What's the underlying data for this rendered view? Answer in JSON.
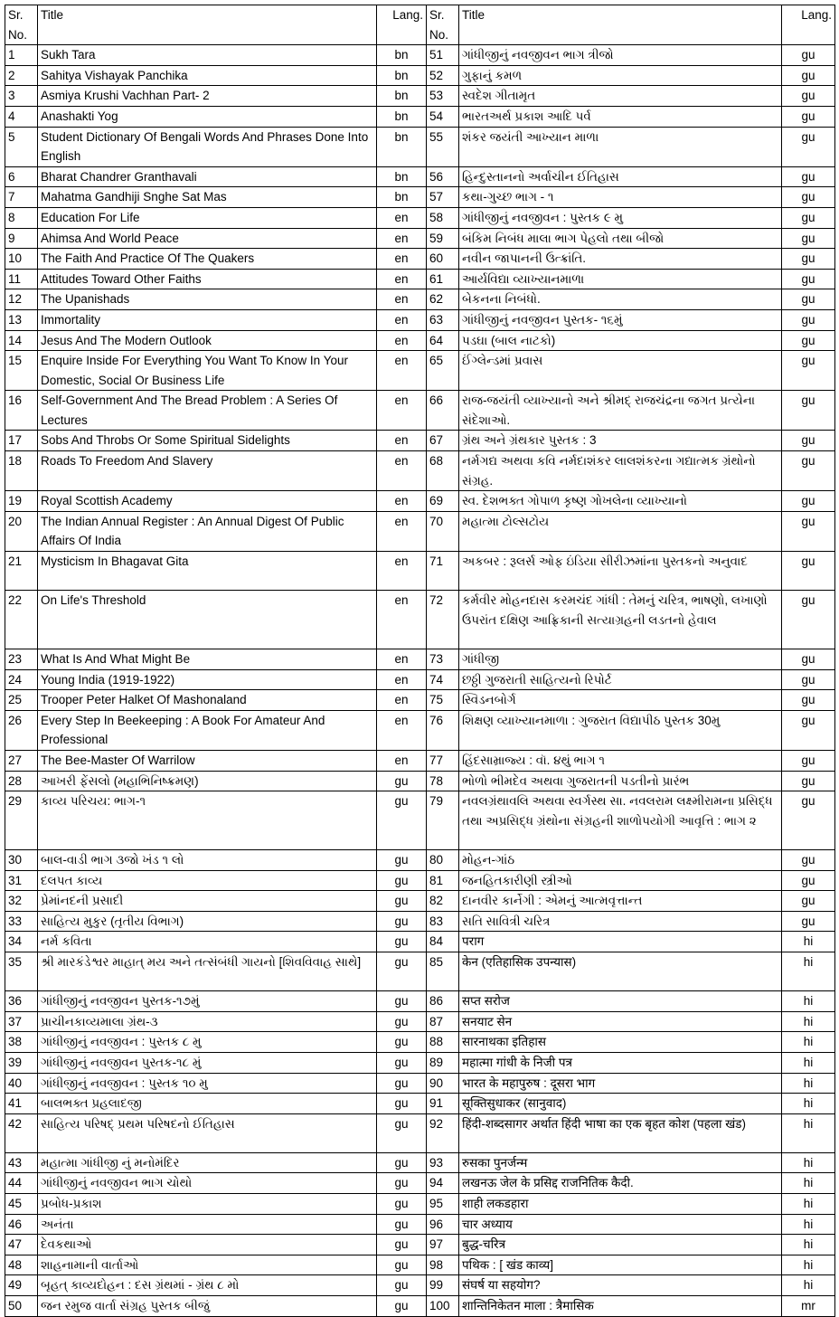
{
  "header": {
    "sr": "Sr. No.",
    "title": "Title",
    "lang": "Lang."
  },
  "rows": [
    {
      "l": {
        "sr": "1",
        "title": "Sukh Tara",
        "lang": "bn"
      },
      "r": {
        "sr": "51",
        "title": "ગાંધીજીનું નવજીવન ભાગ ત્રીજો",
        "lang": "gu"
      }
    },
    {
      "l": {
        "sr": "2",
        "title": "Sahitya Vishayak Panchika",
        "lang": "bn"
      },
      "r": {
        "sr": "52",
        "title": "ગુફાનું કમળ",
        "lang": "gu"
      }
    },
    {
      "l": {
        "sr": "3",
        "title": "Asmiya Krushi Vachhan Part- 2",
        "lang": "bn"
      },
      "r": {
        "sr": "53",
        "title": "સ્વદેશ ગીતામૃત",
        "lang": "gu"
      }
    },
    {
      "l": {
        "sr": "4",
        "title": "Anashakti Yog",
        "lang": "bn"
      },
      "r": {
        "sr": "54",
        "title": "ભારતઅર્થ પ્રકાશ આદિ પર્વ",
        "lang": "gu"
      }
    },
    {
      "l": {
        "sr": "5",
        "title": "Student Dictionary Of Bengali Words And Phrases Done Into English",
        "lang": "bn"
      },
      "r": {
        "sr": "55",
        "title": "શંકર જયંતી આખ્યાન માળા",
        "lang": "gu"
      }
    },
    {
      "l": {
        "sr": "6",
        "title": "Bharat Chandrer Granthavali",
        "lang": "bn"
      },
      "r": {
        "sr": "56",
        "title": "હિન્દુસ્તાનનો અર્વાચીન ઈતિહાસ",
        "lang": "gu"
      }
    },
    {
      "l": {
        "sr": "7",
        "title": "Mahatma Gandhiji Snghe Sat Mas",
        "lang": "bn"
      },
      "r": {
        "sr": "57",
        "title": "કથા-ગુચ્છ ભાગ - ૧",
        "lang": "gu"
      }
    },
    {
      "l": {
        "sr": "8",
        "title": "Education For Life",
        "lang": "en"
      },
      "r": {
        "sr": "58",
        "title": "ગાંધીજીનું નવજીવન : પુસ્તક ૯ મુ",
        "lang": "gu"
      }
    },
    {
      "l": {
        "sr": "9",
        "title": "Ahimsa And World Peace",
        "lang": "en"
      },
      "r": {
        "sr": "59",
        "title": "બંકિમ નિબંધ માલા ભાગ પેહલો તથા બીજો",
        "lang": "gu"
      }
    },
    {
      "l": {
        "sr": "10",
        "title": "The Faith And Practice Of The Quakers",
        "lang": "en"
      },
      "r": {
        "sr": "60",
        "title": "નવીન જાપાનની ઉત્ક્રાંતિ.",
        "lang": "gu"
      }
    },
    {
      "l": {
        "sr": "11",
        "title": "Attitudes Toward Other Faiths",
        "lang": "en"
      },
      "r": {
        "sr": "61",
        "title": "આર્યવિદ્યા વ્યાખ્યાનમાળા",
        "lang": "gu"
      }
    },
    {
      "l": {
        "sr": "12",
        "title": "The Upanishads",
        "lang": "en"
      },
      "r": {
        "sr": "62",
        "title": "બેકનના નિબંધો.",
        "lang": "gu"
      }
    },
    {
      "l": {
        "sr": "13",
        "title": "Immortality",
        "lang": "en"
      },
      "r": {
        "sr": "63",
        "title": "ગાંધીજીનું નવજીવન પુસ્તક- ૧૬મું",
        "lang": "gu"
      }
    },
    {
      "l": {
        "sr": "14",
        "title": "Jesus And The Modern Outlook",
        "lang": "en"
      },
      "r": {
        "sr": "64",
        "title": "પડઘા (બાલ નાટકો)",
        "lang": "gu"
      }
    },
    {
      "l": {
        "sr": "15",
        "title": "Enquire Inside For Everything You Want To Know In Your Domestic, Social Or Business Life",
        "lang": "en"
      },
      "r": {
        "sr": "65",
        "title": "ઈંગ્લેન્ડમાં પ્રવાસ",
        "lang": "gu"
      }
    },
    {
      "l": {
        "sr": "16",
        "title": "Self-Government And The Bread Problem : A Series Of Lectures",
        "lang": "en"
      },
      "r": {
        "sr": "66",
        "title": "રાજ-જયંતી વ્યાખ્યાનો અને શ્રીમદ્ રાજચંદ્રના જગત પ્રત્યેના સંદેશાઓ.",
        "lang": "gu"
      }
    },
    {
      "l": {
        "sr": "17",
        "title": "Sobs And Throbs Or Some Spiritual Sidelights",
        "lang": "en"
      },
      "r": {
        "sr": "67",
        "title": "ગ્રંથ અને ગ્રંથકાર પુસ્તક : 3",
        "lang": "gu"
      }
    },
    {
      "l": {
        "sr": "18",
        "title": "Roads To Freedom And Slavery",
        "lang": "en"
      },
      "r": {
        "sr": "68",
        "title": "નર્મગદ્ય અથવા કવિ નર્મદાશંકર લાલશંકરના ગદ્યાત્મક ગ્રંથોનો સંગ્રહ.",
        "lang": "gu"
      }
    },
    {
      "l": {
        "sr": "19",
        "title": "Royal Scottish Academy",
        "lang": "en"
      },
      "r": {
        "sr": "69",
        "title": "સ્વ. દેશભક્ત ગોપાળ કૃષ્ણ ગોખલેના વ્યાખ્યાનો",
        "lang": "gu"
      }
    },
    {
      "l": {
        "sr": "20",
        "title": "The Indian Annual Register : An Annual Digest Of Public Affairs Of India",
        "lang": "en"
      },
      "r": {
        "sr": "70",
        "title": "મહાત્મા ટોલ્સટોય",
        "lang": "gu"
      }
    },
    {
      "l": {
        "sr": "21",
        "title": "Mysticism In Bhagavat Gita",
        "lang": "en"
      },
      "r": {
        "sr": "71",
        "title": "અકબર : રૂલર્સ ઓફ ઇંડિયા સીરીઝમાંના પુસ્તકનો અનુવાદ",
        "lang": "gu"
      }
    },
    {
      "l": {
        "sr": "22",
        "title": "On Life's Threshold",
        "lang": "en"
      },
      "r": {
        "sr": "72",
        "title": "કર્મવીર મોહનદાસ કરમચંદ ગાંધી : તેમનું ચરિત્ર, ભાષણો, લખાણો ઉપરાંત દક્ષિણ આફ્રિકાની સત્યાગ્રહની લડતનો હેવાલ",
        "lang": "gu"
      }
    },
    {
      "l": {
        "sr": "23",
        "title": "What Is And What Might Be",
        "lang": "en"
      },
      "r": {
        "sr": "73",
        "title": "ગાંધીજી",
        "lang": "gu"
      }
    },
    {
      "l": {
        "sr": "24",
        "title": "Young India (1919-1922)",
        "lang": "en"
      },
      "r": {
        "sr": "74",
        "title": "છઠ્ઠી ગુજરાતી સાહિત્યનો રિપોર્ટ",
        "lang": "gu"
      }
    },
    {
      "l": {
        "sr": "25",
        "title": "Trooper Peter Halket Of Mashonaland",
        "lang": "en"
      },
      "r": {
        "sr": "75",
        "title": "સ્વિડનબોર્ગ",
        "lang": "gu"
      }
    },
    {
      "l": {
        "sr": "26",
        "title": "Every Step In Beekeeping : A Book For Amateur And Professional",
        "lang": "en"
      },
      "r": {
        "sr": "76",
        "title": "શિક્ષણ વ્યાખ્યાનમાળા : ગુજરાત વિદ્યાપીઠ પુસ્તક 30મુ",
        "lang": "gu"
      }
    },
    {
      "l": {
        "sr": "27",
        "title": "The Bee-Master Of Warrilow",
        "lang": "en"
      },
      "r": {
        "sr": "77",
        "title": "હિંદસામ્રાજ્ય : વૉ. ૪થું ભાગ ૧",
        "lang": "gu"
      }
    },
    {
      "l": {
        "sr": "28",
        "title": "આખરી ફેંસલો (મહાભિનિષ્ક્રમણ)",
        "lang": "gu"
      },
      "r": {
        "sr": "78",
        "title": "ભોળો ભીમદેવ અથવા ગુજરાતની પડતીનો પ્રારંભ",
        "lang": "gu"
      }
    },
    {
      "l": {
        "sr": "29",
        "title": "કાવ્ય પરિચય: ભાગ-૧",
        "lang": "gu"
      },
      "r": {
        "sr": "79",
        "title": "નવલગ્રંથાવલિ અથવા સ્વર્ગસ્થ સા. નવલરામ લક્ષ્મીરામના પ્રસિદ્ધ તથા અપ્રસિદ્ધ ગ્રંથોના સંગ્રહની શાળોપયોગી આવૃત્તિ : ભાગ ૨",
        "lang": "gu"
      }
    },
    {
      "l": {
        "sr": "30",
        "title": "બાલ-વાડી ભાગ ૩જો ખંડ ૧ લો",
        "lang": "gu"
      },
      "r": {
        "sr": "80",
        "title": "મોહન-ગાંઠ",
        "lang": "gu"
      }
    },
    {
      "l": {
        "sr": "31",
        "title": "દલપત કાવ્ય",
        "lang": "gu"
      },
      "r": {
        "sr": "81",
        "title": "જનહિતકારીણી સ્ત્રીઓ",
        "lang": "gu"
      }
    },
    {
      "l": {
        "sr": "32",
        "title": "પ્રેમાંનદની  પ્રસાદી",
        "lang": "gu"
      },
      "r": {
        "sr": "82",
        "title": "દાનવીર કાર્નેગી : એમનું આત્મવૃત્તાન્ત",
        "lang": "gu"
      }
    },
    {
      "l": {
        "sr": "33",
        "title": "સાહિત્ય મુકુર (તૃતીય વિભાગ)",
        "lang": "gu"
      },
      "r": {
        "sr": "83",
        "title": "સતિ સાવિત્રી ચરિત્ર",
        "lang": "gu"
      }
    },
    {
      "l": {
        "sr": "34",
        "title": "નર્મ કવિતા",
        "lang": "gu"
      },
      "r": {
        "sr": "84",
        "title": "पराग",
        "lang": "hi"
      }
    },
    {
      "l": {
        "sr": "35",
        "title": "શ્રી મારકંડેશ્વર માહાત્ મય અને તત્સંબંધી ગાયનો [શિવવિવાહ સાથે]",
        "lang": "gu"
      },
      "r": {
        "sr": "85",
        "title": "केन (एतिहासिक उपन्यास)",
        "lang": "hi"
      }
    },
    {
      "l": {
        "sr": "36",
        "title": "ગાંધીજીનું નવજીવન પુસ્તક-૧૭મું",
        "lang": "gu"
      },
      "r": {
        "sr": "86",
        "title": "सप्त सरोज",
        "lang": "hi"
      }
    },
    {
      "l": {
        "sr": "37",
        "title": "પ્રાચીનકાવ્યમાલા ગ્રંથ-૩",
        "lang": "gu"
      },
      "r": {
        "sr": "87",
        "title": "सनयाट सेन",
        "lang": "hi"
      }
    },
    {
      "l": {
        "sr": "38",
        "title": "ગાંધીજીનું નવજીવન : પુસ્તક ૮ મુ",
        "lang": "gu"
      },
      "r": {
        "sr": "88",
        "title": "सारनाथका इतिहास",
        "lang": "hi"
      }
    },
    {
      "l": {
        "sr": "39",
        "title": "ગાંધીજીનું નવજીવન પુસ્તક-૧૮ મું",
        "lang": "gu"
      },
      "r": {
        "sr": "89",
        "title": "महात्मा गांधी के निजी पत्र",
        "lang": "hi"
      }
    },
    {
      "l": {
        "sr": "40",
        "title": "ગાંધીજીનું નવજીવન : પુસ્તક ૧૦ મુ",
        "lang": "gu"
      },
      "r": {
        "sr": "90",
        "title": "भारत के महापुरुष : दूसरा भाग",
        "lang": "hi"
      }
    },
    {
      "l": {
        "sr": "41",
        "title": "બાલભક્ત પ્રહલાદજી",
        "lang": "gu"
      },
      "r": {
        "sr": "91",
        "title": "सूक्तिसुधाकर (सानुवाद)",
        "lang": "hi"
      }
    },
    {
      "l": {
        "sr": "42",
        "title": "સાહિત્ય પરિષદ્ પ્રથમ પરિષદનો ઈતિહાસ",
        "lang": "gu"
      },
      "r": {
        "sr": "92",
        "title": "हिंदी-शब्दसागर अर्थात हिंदी भाषा का एक बृहत कोश (पहला खंड)",
        "lang": "hi"
      }
    },
    {
      "l": {
        "sr": "43",
        "title": "મહાત્મા ગાંધીજી નું મનોમંદિર",
        "lang": "gu"
      },
      "r": {
        "sr": "93",
        "title": "रुसका पुनर्जन्म",
        "lang": "hi"
      }
    },
    {
      "l": {
        "sr": "44",
        "title": "ગાંધીજીનું નવજીવન ભાગ ચોથો",
        "lang": "gu"
      },
      "r": {
        "sr": "94",
        "title": "लखनऊ जेल के प्रसिद्द राजनितिक कैदी.",
        "lang": "hi"
      }
    },
    {
      "l": {
        "sr": "45",
        "title": "પ્રબોધ-પ્રકાશ",
        "lang": "gu"
      },
      "r": {
        "sr": "95",
        "title": "शाही लकडहारा",
        "lang": "hi"
      }
    },
    {
      "l": {
        "sr": "46",
        "title": "અનંતા",
        "lang": "gu"
      },
      "r": {
        "sr": "96",
        "title": "चार अध्याय",
        "lang": "hi"
      }
    },
    {
      "l": {
        "sr": "47",
        "title": "દેવકથાઓ",
        "lang": "gu"
      },
      "r": {
        "sr": "97",
        "title": "बुद्ध-चरित्र",
        "lang": "hi"
      }
    },
    {
      "l": {
        "sr": "48",
        "title": "શાહનામાની વાર્તાઓ",
        "lang": "gu"
      },
      "r": {
        "sr": "98",
        "title": "पथिक :  [ खंड काव्य]",
        "lang": "hi"
      }
    },
    {
      "l": {
        "sr": "49",
        "title": "બૃહત્ કાવ્યદોહન : દસ ગ્રંથમાં - ગ્રંથ ૮ મો",
        "lang": "gu"
      },
      "r": {
        "sr": "99",
        "title": "संघर्ष या सहयोग?",
        "lang": "hi"
      }
    },
    {
      "l": {
        "sr": "50",
        "title": "જન રમુજ વાર્તા સંગ્રહ પુસ્તક બીજું",
        "lang": "gu"
      },
      "r": {
        "sr": "100",
        "title": "शान्तिनिकेतन माला : त्रैमासिक",
        "lang": "mr"
      }
    }
  ]
}
